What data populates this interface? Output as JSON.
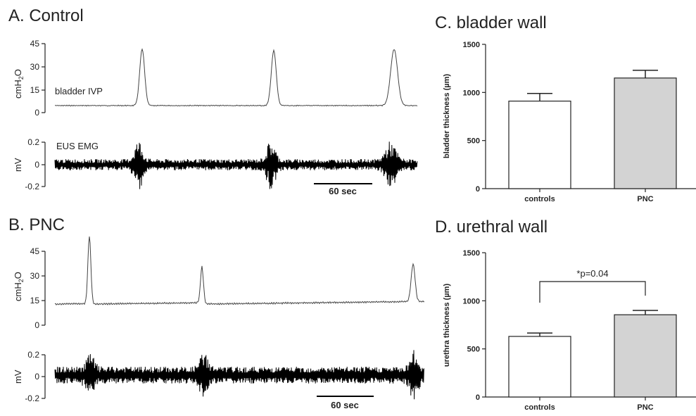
{
  "panels": {
    "A": {
      "title": "A. Control",
      "ivp": {
        "ylabel_main": "cmH",
        "ylabel_sub": "2",
        "ylabel_end": "O",
        "ticks": [
          "45",
          "30",
          "15",
          "0"
        ],
        "trace_label": "bladder IVP"
      },
      "emg": {
        "ylabel": "mV",
        "ticks": [
          "0.2",
          "0",
          "-0.2"
        ],
        "trace_label": "EUS EMG"
      },
      "scale_bar": "60 sec"
    },
    "B": {
      "title": "B. PNC",
      "ivp": {
        "ylabel_main": "cmH",
        "ylabel_sub": "2",
        "ylabel_end": "O",
        "ticks": [
          "45",
          "30",
          "15",
          "0"
        ]
      },
      "emg": {
        "ylabel": "mV",
        "ticks": [
          "0.2",
          "0",
          "-0.2"
        ]
      },
      "scale_bar": "60 sec"
    }
  },
  "chart_data": [
    {
      "type": "bar",
      "title": "C. bladder wall",
      "ylabel": "bladder thickness (µm)",
      "ylim": [
        0,
        1500
      ],
      "yticks": [
        "0",
        "500",
        "1000",
        "1500"
      ],
      "categories": [
        "controls",
        "PNC"
      ],
      "values": [
        910,
        1150
      ],
      "errors": [
        80,
        80
      ],
      "colors": [
        "#ffffff",
        "#d3d3d3"
      ],
      "annotation": ""
    },
    {
      "type": "bar",
      "title": "D. urethral wall",
      "ylabel": "urethra thickness (µm)",
      "ylim": [
        0,
        1500
      ],
      "yticks": [
        "0",
        "500",
        "1000",
        "1500"
      ],
      "categories": [
        "controls",
        "PNC"
      ],
      "values": [
        630,
        855
      ],
      "errors": [
        35,
        45
      ],
      "colors": [
        "#ffffff",
        "#d3d3d3"
      ],
      "annotation": "*p=0.04"
    }
  ]
}
